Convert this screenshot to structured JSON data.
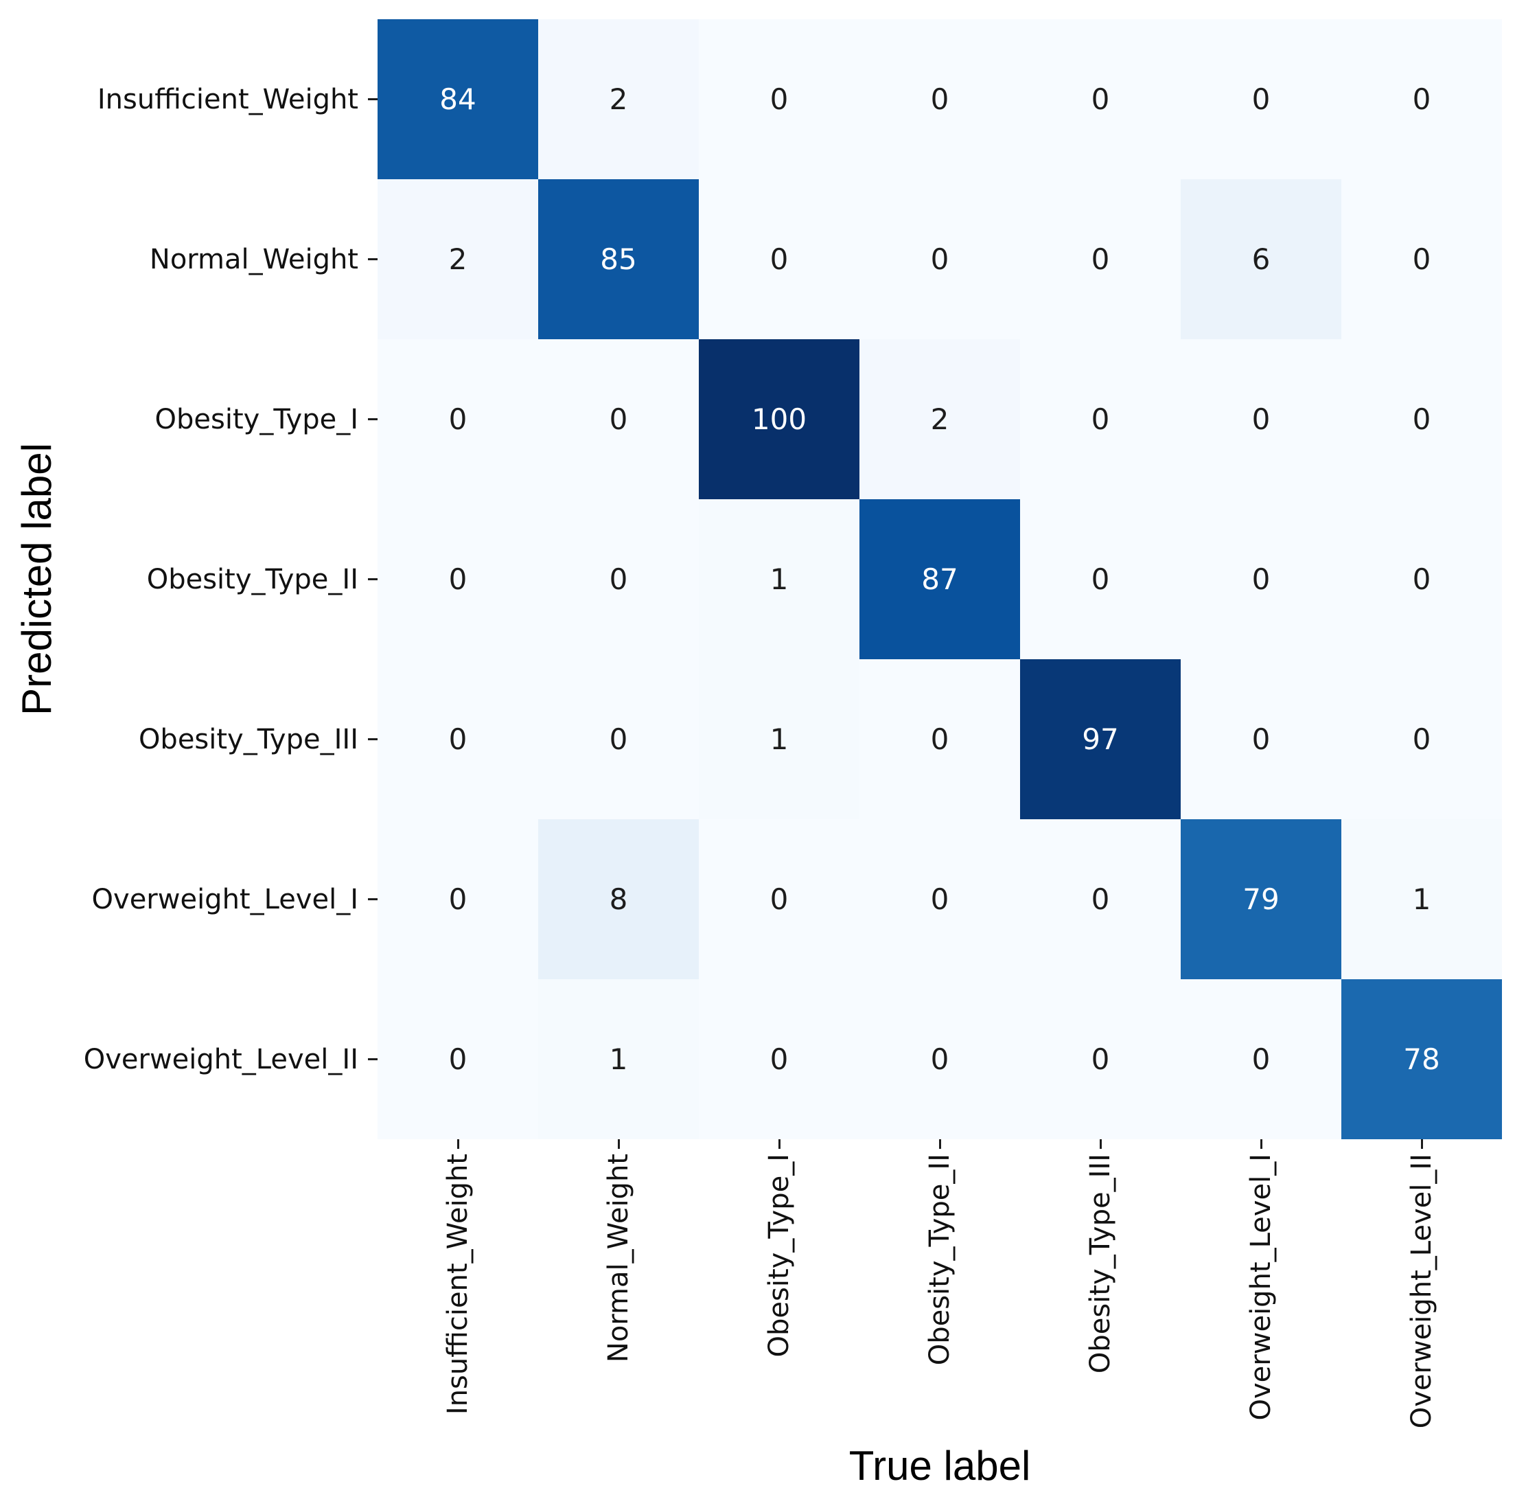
{
  "chart_data": {
    "type": "heatmap",
    "title": "",
    "xlabel": "True label",
    "ylabel": "Predicted label",
    "x_categories": [
      "Insufficient_Weight",
      "Normal_Weight",
      "Obesity_Type_I",
      "Obesity_Type_II",
      "Obesity_Type_III",
      "Overweight_Level_I",
      "Overweight_Level_II"
    ],
    "y_categories": [
      "Insufficient_Weight",
      "Normal_Weight",
      "Obesity_Type_I",
      "Obesity_Type_II",
      "Obesity_Type_III",
      "Overweight_Level_I",
      "Overweight_Level_II"
    ],
    "matrix": [
      [
        84,
        2,
        0,
        0,
        0,
        0,
        0
      ],
      [
        2,
        85,
        0,
        0,
        0,
        6,
        0
      ],
      [
        0,
        0,
        100,
        2,
        0,
        0,
        0
      ],
      [
        0,
        0,
        1,
        87,
        0,
        0,
        0
      ],
      [
        0,
        0,
        1,
        0,
        97,
        0,
        0
      ],
      [
        0,
        8,
        0,
        0,
        0,
        79,
        1
      ],
      [
        0,
        1,
        0,
        0,
        0,
        0,
        78
      ]
    ],
    "vmin": 0,
    "vmax": 100,
    "colormap": "Blues",
    "colormap_anchor_colors": [
      "#f7fbff",
      "#deebf7",
      "#c6dbef",
      "#9ecae1",
      "#6baed6",
      "#4292c6",
      "#2171b5",
      "#08519c",
      "#08306b"
    ],
    "annotation_color_dark_cells": "#ffffff",
    "annotation_color_light_cells": "#1c1c1c",
    "tick_color": "#1c1c1c",
    "axis_title_color": "#000000",
    "grid_on": false,
    "legend": "none"
  }
}
